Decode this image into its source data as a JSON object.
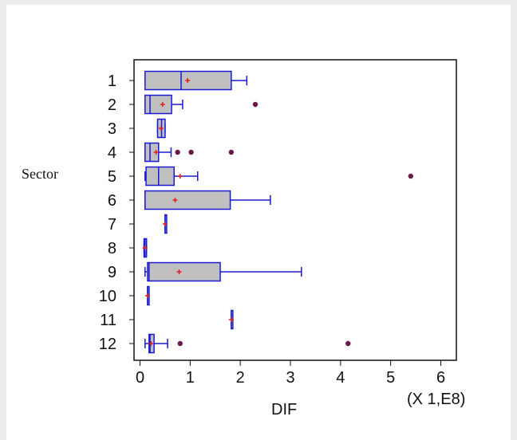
{
  "chart_data": {
    "type": "boxplot",
    "orientation": "horizontal",
    "xlabel": "DIF",
    "ylabel": "Sector",
    "x_multiplier_label": "(X 1,E8)",
    "xlim": [
      -0.1,
      6.3
    ],
    "x_ticks": [
      0,
      1,
      2,
      3,
      4,
      5,
      6
    ],
    "categories": [
      "1",
      "2",
      "3",
      "4",
      "5",
      "6",
      "7",
      "8",
      "9",
      "10",
      "11",
      "12"
    ],
    "boxes": [
      {
        "sector": "1",
        "whisker_low": 0.1,
        "q1": 0.1,
        "median": 0.82,
        "q3": 1.82,
        "whisker_high": 2.13,
        "mean": 0.95,
        "outliers": []
      },
      {
        "sector": "2",
        "whisker_low": 0.1,
        "q1": 0.1,
        "median": 0.2,
        "q3": 0.63,
        "whisker_high": 0.85,
        "mean": 0.45,
        "outliers": [
          2.3
        ]
      },
      {
        "sector": "3",
        "whisker_low": 0.35,
        "q1": 0.35,
        "median": 0.43,
        "q3": 0.5,
        "whisker_high": 0.5,
        "mean": 0.42,
        "outliers": []
      },
      {
        "sector": "4",
        "whisker_low": 0.1,
        "q1": 0.1,
        "median": 0.2,
        "q3": 0.37,
        "whisker_high": 0.62,
        "mean": 0.32,
        "outliers": [
          0.75,
          1.02,
          1.82
        ]
      },
      {
        "sector": "5",
        "whisker_low": 0.1,
        "q1": 0.12,
        "median": 0.37,
        "q3": 0.68,
        "whisker_high": 1.15,
        "mean": 0.8,
        "outliers": [
          5.4
        ]
      },
      {
        "sector": "6",
        "whisker_low": 0.1,
        "q1": 0.1,
        "median": 0.1,
        "q3": 1.8,
        "whisker_high": 2.6,
        "mean": 0.7,
        "outliers": []
      },
      {
        "sector": "7",
        "whisker_low": 0.5,
        "q1": 0.5,
        "median": 0.5,
        "q3": 0.5,
        "whisker_high": 0.5,
        "mean": 0.5,
        "outliers": []
      },
      {
        "sector": "8",
        "whisker_low": 0.08,
        "q1": 0.08,
        "median": 0.1,
        "q3": 0.13,
        "whisker_high": 0.13,
        "mean": 0.1,
        "outliers": []
      },
      {
        "sector": "9",
        "whisker_low": 0.1,
        "q1": 0.15,
        "median": 0.18,
        "q3": 1.6,
        "whisker_high": 3.22,
        "mean": 0.78,
        "outliers": []
      },
      {
        "sector": "10",
        "whisker_low": 0.15,
        "q1": 0.15,
        "median": 0.15,
        "q3": 0.15,
        "whisker_high": 0.15,
        "mean": 0.15,
        "outliers": []
      },
      {
        "sector": "11",
        "whisker_low": 1.82,
        "q1": 1.82,
        "median": 1.82,
        "q3": 1.82,
        "whisker_high": 1.82,
        "mean": 1.82,
        "outliers": []
      },
      {
        "sector": "12",
        "whisker_low": 0.1,
        "q1": 0.18,
        "median": 0.2,
        "q3": 0.28,
        "whisker_high": 0.55,
        "mean": 0.22,
        "outliers": [
          0.8,
          4.15
        ]
      }
    ],
    "colors": {
      "box_fill": "#c0c0c0",
      "box_stroke": "#1a1ad6",
      "mean_marker": "#e02020",
      "outlier": "#6a1a4a"
    },
    "grid": false
  }
}
